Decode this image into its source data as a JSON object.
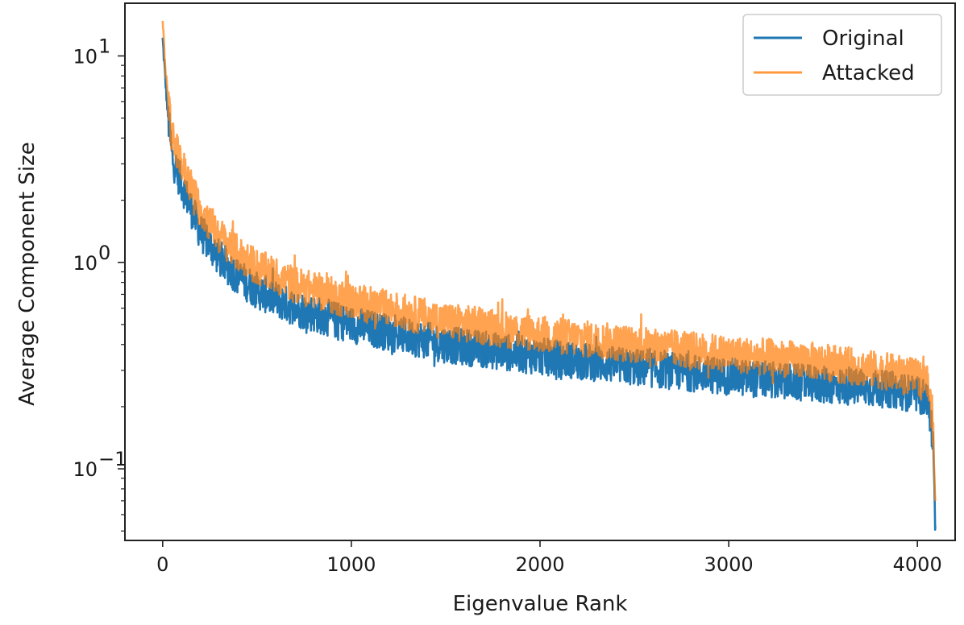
{
  "chart_data": {
    "type": "line",
    "title": "",
    "xlabel": "Eigenvalue Rank",
    "ylabel": "Average Component Size",
    "yscale": "log",
    "xlim": [
      -200,
      4200
    ],
    "ylim": [
      0.045,
      18
    ],
    "grid": false,
    "legend_position": "top-right",
    "x_ticks": [
      0,
      1000,
      2000,
      3000,
      4000
    ],
    "x_tick_labels": [
      "0",
      "1000",
      "2000",
      "3000",
      "4000"
    ],
    "y_ticks": [
      {
        "value": 10,
        "base": "10",
        "exp": "1"
      },
      {
        "value": 1,
        "base": "10",
        "exp": "0"
      },
      {
        "value": 0.1,
        "base": "10",
        "exp": "−1"
      }
    ],
    "x": [
      0,
      25,
      50,
      100,
      200,
      300,
      400,
      500,
      700,
      1000,
      1500,
      2000,
      2500,
      3000,
      3500,
      3900,
      4050,
      4080,
      4095
    ],
    "series": [
      {
        "name": "Original",
        "color": "#1f77b4",
        "values": [
          12.0,
          5.5,
          3.2,
          2.4,
          1.4,
          1.05,
          0.85,
          0.73,
          0.6,
          0.5,
          0.4,
          0.35,
          0.31,
          0.28,
          0.255,
          0.24,
          0.22,
          0.15,
          0.053
        ]
      },
      {
        "name": "Attacked",
        "color": "#ff7f0e",
        "values": [
          14.0,
          6.5,
          4.0,
          3.0,
          1.8,
          1.35,
          1.1,
          0.95,
          0.78,
          0.65,
          0.52,
          0.45,
          0.4,
          0.36,
          0.33,
          0.29,
          0.27,
          0.18,
          0.07
        ]
      }
    ]
  }
}
